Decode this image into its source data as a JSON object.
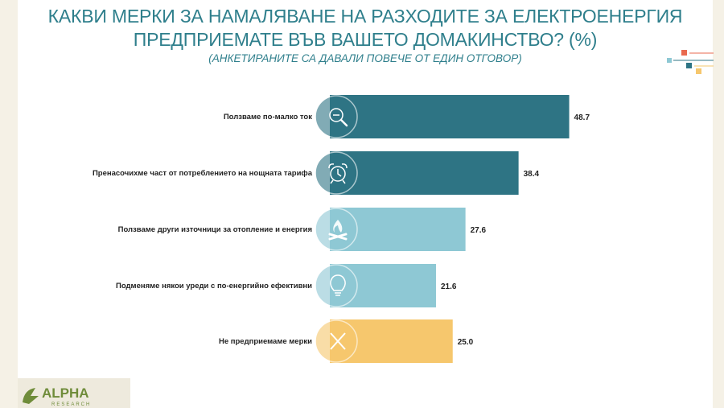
{
  "header": {
    "title_line1": "КАКВИ МЕРКИ ЗА НАМАЛЯВАНЕ НА РАЗХОДИТЕ ЗА ЕЛЕКТРОЕНЕРГИЯ",
    "title_line2": "ПРЕДПРИЕМАТЕ ВЪВ ВАШЕТО ДОМАКИНСТВО? (%)",
    "subtitle": "(АНКЕТИРАНИТЕ СА ДАВАЛИ ПОВЕЧЕ ОТ ЕДИН ОТГОВОР)"
  },
  "logo": {
    "text": "ALPHA",
    "subtext": "RESEARCH"
  },
  "chart_data": {
    "type": "bar",
    "orientation": "horizontal",
    "categories": [
      "Ползваме по-малко ток",
      "Пренасочихме част от потреблението на нощната тарифа",
      "Ползваме други източници за отопление и енергия",
      "Подменяме някои уреди с по-енергийно ефективни",
      "Не предприемаме мерки"
    ],
    "values": [
      48.7,
      38.4,
      27.6,
      21.6,
      25.0
    ],
    "value_labels": [
      "48.7",
      "38.4",
      "27.6",
      "21.6",
      "25.0"
    ],
    "icons": [
      "magnifier-minus-icon",
      "alarm-clock-icon",
      "campfire-icon",
      "light-bulb-icon",
      "cross-icon"
    ],
    "colors": [
      "#2e7484",
      "#2e7484",
      "#8ec8d4",
      "#8ec8d4",
      "#f6c76d"
    ],
    "xlim": [
      0,
      50
    ],
    "grid": false,
    "legend": "none"
  }
}
